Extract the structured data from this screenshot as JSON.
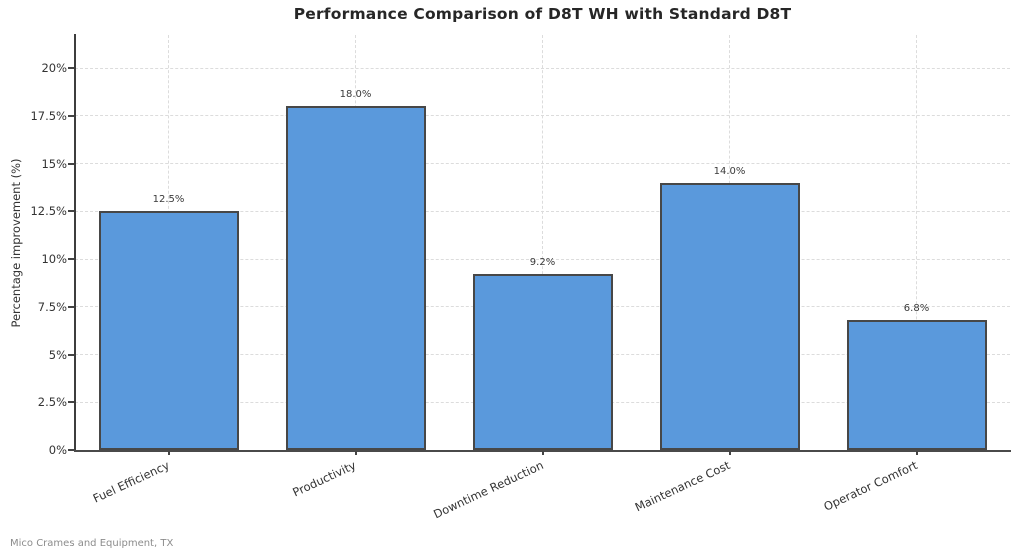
{
  "footer": {
    "text": "Mico Crames and Equipment, TX"
  },
  "chart_data": {
    "type": "bar",
    "title": "Performance Comparison of D8T WH with Standard D8T",
    "categories": [
      "Fuel Efficiency",
      "Productivity",
      "Downtime Reduction",
      "Maintenance Cost",
      "Operator Comfort"
    ],
    "values": [
      12.5,
      18.0,
      9.2,
      14.0,
      6.8
    ],
    "bar_labels": [
      "12.5%",
      "18.0%",
      "9.2%",
      "14.0%",
      "6.8%"
    ],
    "xlabel": "",
    "ylabel": "Percentage improvement (%)",
    "ylim": [
      0,
      21.73
    ],
    "yticks": [
      0,
      2.5,
      5,
      7.5,
      10,
      12.5,
      15,
      17.5,
      20
    ],
    "ytick_labels": [
      "0%",
      "2.5%",
      "5%",
      "7.5%",
      "10%",
      "12.5%",
      "15%",
      "17.5%",
      "20%"
    ],
    "grid": true,
    "grid_style": "dashed",
    "legend": "none",
    "bar_color": "#5A99DC",
    "bar_edge_color": "#474747",
    "source_note": "Mico Crames and Equipment, TX"
  }
}
